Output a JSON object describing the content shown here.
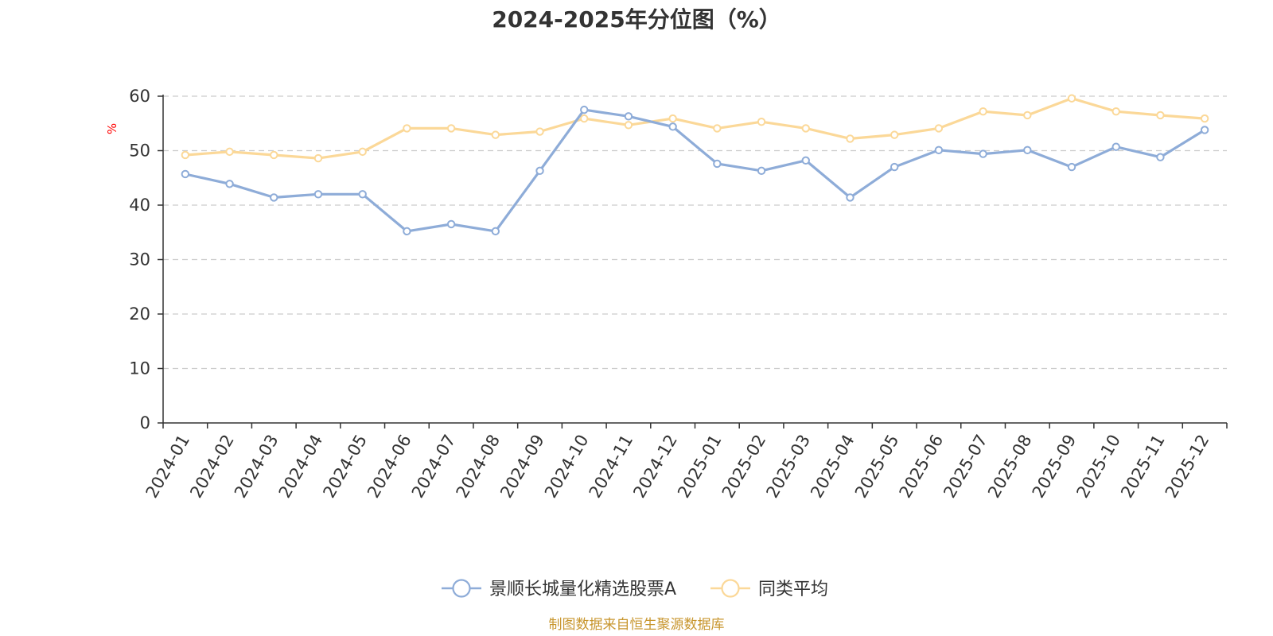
{
  "chart_data": {
    "type": "line",
    "title": "2024-2025年分位图（%）",
    "ylabel": "%",
    "ylim": [
      0,
      60
    ],
    "yticks": [
      0,
      10,
      20,
      30,
      40,
      50,
      60
    ],
    "grid": true,
    "categories": [
      "2024-01",
      "2024-02",
      "2024-03",
      "2024-04",
      "2024-05",
      "2024-06",
      "2024-07",
      "2024-08",
      "2024-09",
      "2024-10",
      "2024-11",
      "2024-12",
      "2025-01",
      "2025-02",
      "2025-03",
      "2025-04",
      "2025-05",
      "2025-06",
      "2025-07",
      "2025-08",
      "2025-09",
      "2025-10",
      "2025-11",
      "2025-12"
    ],
    "series": [
      {
        "name": "景顺长城量化精选股票A",
        "color": "#8eacd8",
        "values": [
          45.7,
          43.9,
          41.4,
          42.0,
          42.0,
          35.2,
          36.5,
          35.2,
          46.3,
          57.5,
          56.3,
          54.4,
          47.6,
          46.3,
          48.2,
          41.4,
          47.0,
          50.1,
          49.4,
          50.1,
          47.0,
          50.7,
          48.8,
          53.8
        ]
      },
      {
        "name": "同类平均",
        "color": "#fbd898",
        "values": [
          49.2,
          49.8,
          49.2,
          48.6,
          49.8,
          54.1,
          54.1,
          52.9,
          53.5,
          55.9,
          54.7,
          55.9,
          54.1,
          55.3,
          54.1,
          52.2,
          52.9,
          54.1,
          57.2,
          56.5,
          59.6,
          57.2,
          56.5,
          55.9
        ]
      }
    ],
    "legend_position": "bottom-center",
    "source": "制图数据来自恒生聚源数据库"
  },
  "colors": {
    "axis": "#333333",
    "grid": "#cccccc",
    "ylabel": "#ff0000",
    "source": "#c8962e"
  }
}
